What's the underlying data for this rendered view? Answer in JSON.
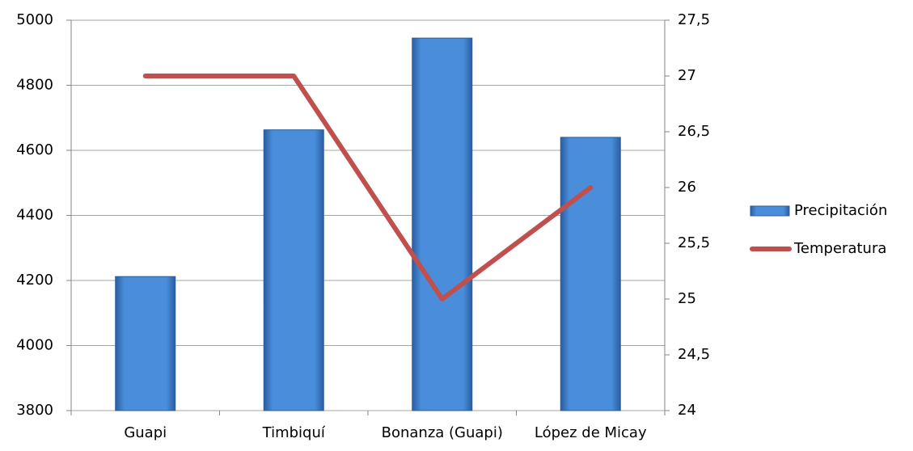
{
  "chart_data": {
    "type": "bar",
    "categories": [
      "Guapi",
      "Timbiquí",
      "Bonanza (Guapi)",
      "López de Micay"
    ],
    "series": [
      {
        "name": "Precipitación",
        "type": "bar",
        "color": "#3f7fcf",
        "values": [
          4212,
          4663,
          4945,
          4640
        ]
      },
      {
        "name": "Temperatura",
        "type": "line",
        "axis": "y2",
        "color": "#c0504d",
        "values": [
          27,
          27,
          25,
          26
        ]
      }
    ],
    "ylim": [
      3800,
      5000
    ],
    "yticks": [
      3800,
      4000,
      4200,
      4400,
      4600,
      4800,
      5000
    ],
    "y2lim": [
      24,
      27.5
    ],
    "y2ticks": [
      24,
      {
        "value": 24.5,
        "label": "24,5"
      },
      25,
      {
        "value": 25.5,
        "label": "25,5"
      },
      26,
      {
        "value": 26.5,
        "label": "26,5"
      },
      27,
      {
        "value": 27.5,
        "label": "27,5"
      }
    ],
    "grid": true,
    "legend": "right"
  }
}
